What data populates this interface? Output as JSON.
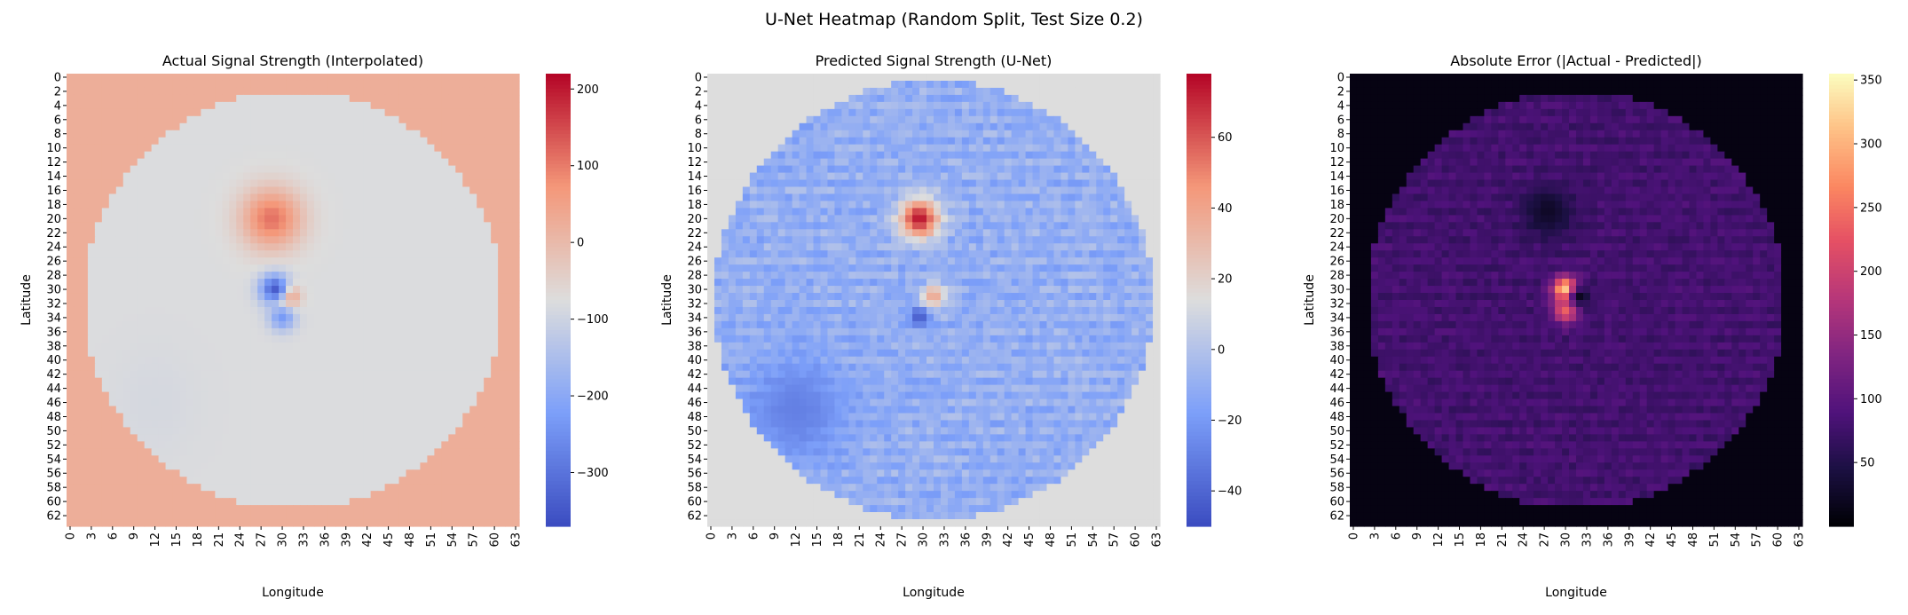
{
  "figure_title": "U-Net Heatmap (Random Split, Test Size 0.2)",
  "chart_data": [
    {
      "type": "heatmap",
      "title": "Actual Signal Strength (Interpolated)",
      "xlabel": "Longitude",
      "ylabel": "Latitude",
      "grid_size": [
        64,
        64
      ],
      "x_ticks": [
        0,
        3,
        6,
        9,
        12,
        15,
        18,
        21,
        24,
        27,
        30,
        33,
        36,
        39,
        42,
        45,
        48,
        51,
        54,
        57,
        60,
        63
      ],
      "y_ticks": [
        0,
        2,
        4,
        6,
        8,
        10,
        12,
        14,
        16,
        18,
        20,
        22,
        24,
        26,
        28,
        30,
        32,
        34,
        36,
        38,
        40,
        42,
        44,
        46,
        48,
        50,
        52,
        54,
        56,
        58,
        60,
        62
      ],
      "colormap": "coolwarm",
      "color_range": [
        -370,
        220
      ],
      "colorbar_ticks": [
        200,
        100,
        0,
        -100,
        -200,
        -300
      ],
      "background_value": 25,
      "disk_value": -78,
      "disk_radius": 29.5,
      "hotspots": [
        {
          "x": 28.5,
          "y": 20,
          "value": 110,
          "radius": 3
        },
        {
          "x": 30.5,
          "y": 31,
          "value": 210,
          "radius": 1.2
        },
        {
          "x": 29,
          "y": 30,
          "value": -340,
          "radius": 1.5
        },
        {
          "x": 30,
          "y": 34,
          "value": -230,
          "radius": 1.3
        }
      ]
    },
    {
      "type": "heatmap",
      "title": "Predicted Signal Strength (U-Net)",
      "xlabel": "Longitude",
      "ylabel": "Latitude",
      "grid_size": [
        64,
        64
      ],
      "x_ticks": [
        0,
        3,
        6,
        9,
        12,
        15,
        18,
        21,
        24,
        27,
        30,
        33,
        36,
        39,
        42,
        45,
        48,
        51,
        54,
        57,
        60,
        63
      ],
      "y_ticks": [
        0,
        2,
        4,
        6,
        8,
        10,
        12,
        14,
        16,
        18,
        20,
        22,
        24,
        26,
        28,
        30,
        32,
        34,
        36,
        38,
        40,
        42,
        44,
        46,
        48,
        50,
        52,
        54,
        56,
        58,
        60,
        62
      ],
      "colormap": "coolwarm",
      "color_range": [
        -50,
        78
      ],
      "colorbar_ticks": [
        60,
        40,
        20,
        0,
        -20,
        -40
      ],
      "background_value": 14,
      "disk_value": -10,
      "disk_radius": 31,
      "hotspots": [
        {
          "x": 29.5,
          "y": 20,
          "value": 75,
          "radius": 2
        },
        {
          "x": 31.5,
          "y": 31,
          "value": 40,
          "radius": 1.2
        },
        {
          "x": 29.5,
          "y": 34,
          "value": -45,
          "radius": 1
        },
        {
          "x": 12,
          "y": 47,
          "value": -30,
          "radius": 5
        }
      ]
    },
    {
      "type": "heatmap",
      "title": "Absolute Error (|Actual - Predicted|)",
      "xlabel": "Longitude",
      "ylabel": "Latitude",
      "grid_size": [
        64,
        64
      ],
      "x_ticks": [
        0,
        3,
        6,
        9,
        12,
        15,
        18,
        21,
        24,
        27,
        30,
        33,
        36,
        39,
        42,
        45,
        48,
        51,
        54,
        57,
        60,
        63
      ],
      "y_ticks": [
        0,
        2,
        4,
        6,
        8,
        10,
        12,
        14,
        16,
        18,
        20,
        22,
        24,
        26,
        28,
        30,
        32,
        34,
        36,
        38,
        40,
        42,
        44,
        46,
        48,
        50,
        52,
        54,
        56,
        58,
        60,
        62
      ],
      "colormap": "magma",
      "color_range": [
        0,
        355
      ],
      "colorbar_ticks": [
        350,
        300,
        250,
        200,
        150,
        100,
        50
      ],
      "background_value": 10,
      "disk_value": 80,
      "disk_radius": 29.5,
      "hotspots": [
        {
          "x": 30,
          "y": 30,
          "value": 345,
          "radius": 1.2
        },
        {
          "x": 30,
          "y": 33,
          "value": 240,
          "radius": 1.2
        },
        {
          "x": 27.5,
          "y": 19,
          "value": 25,
          "radius": 2.5
        },
        {
          "x": 32,
          "y": 31,
          "value": 20,
          "radius": 1
        }
      ]
    }
  ]
}
